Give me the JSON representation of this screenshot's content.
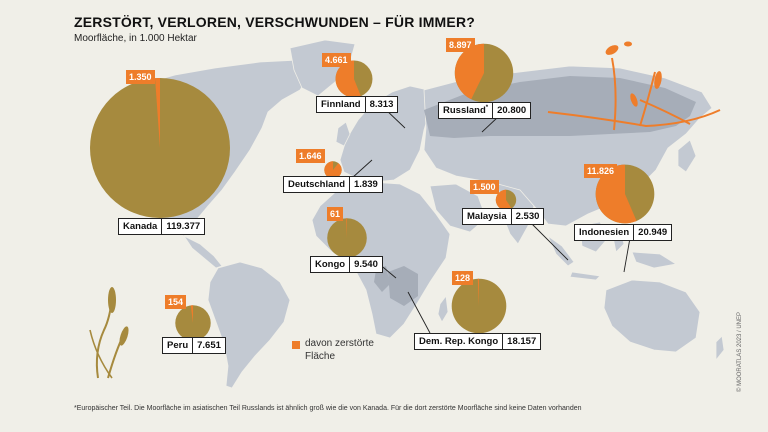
{
  "title": "ZERSTÖRT, VERLOREN, VERSCHWUNDEN – FÜR IMMER?",
  "subtitle": "Moorfläche, in 1.000 Hektar",
  "legend": {
    "destroyed_label": "davon zerstörte Fläche"
  },
  "footnote": "*Europäischer Teil. Die Moorfläche im asiatischen Teil Russlands ist ähnlich groß wie die von Kanada. Für die dort zerstörte Moorfläche sind keine Daten vorhanden",
  "copyright": "© MOORATLAS 2023 / UNEP",
  "colors": {
    "background": "#f0efe8",
    "land": "#c3c9d2",
    "highlight_land": "#a6adb8",
    "total_area": "#a68a3e",
    "destroyed_area": "#ee7d2a"
  },
  "chart_data": {
    "type": "pie",
    "unit": "1.000 Hektar",
    "series_names": {
      "total": "Moorfläche",
      "destroyed": "davon zerstörte Fläche"
    },
    "countries": [
      {
        "name": "Kanada",
        "suffix": "",
        "total": 119377,
        "total_label": "119.377",
        "destroyed": 1350,
        "destroyed_label": "1.350"
      },
      {
        "name": "Finnland",
        "suffix": "",
        "total": 8313,
        "total_label": "8.313",
        "destroyed": 4661,
        "destroyed_label": "4.661"
      },
      {
        "name": "Russland",
        "suffix": "*",
        "total": 20800,
        "total_label": "20.800",
        "destroyed": 8897,
        "destroyed_label": "8.897"
      },
      {
        "name": "Deutschland",
        "suffix": "",
        "total": 1839,
        "total_label": "1.839",
        "destroyed": 1646,
        "destroyed_label": "1.646"
      },
      {
        "name": "Malaysia",
        "suffix": "",
        "total": 2530,
        "total_label": "2.530",
        "destroyed": 1500,
        "destroyed_label": "1.500"
      },
      {
        "name": "Indonesien",
        "suffix": "",
        "total": 20949,
        "total_label": "20.949",
        "destroyed": 11826,
        "destroyed_label": "11.826"
      },
      {
        "name": "Kongo",
        "suffix": "",
        "total": 9540,
        "total_label": "9.540",
        "destroyed": 61,
        "destroyed_label": "61"
      },
      {
        "name": "Dem. Rep. Kongo",
        "suffix": "",
        "total": 18157,
        "total_label": "18.157",
        "destroyed": 128,
        "destroyed_label": "128"
      },
      {
        "name": "Peru",
        "suffix": "",
        "total": 7651,
        "total_label": "7.651",
        "destroyed": 154,
        "destroyed_label": "154"
      }
    ]
  }
}
